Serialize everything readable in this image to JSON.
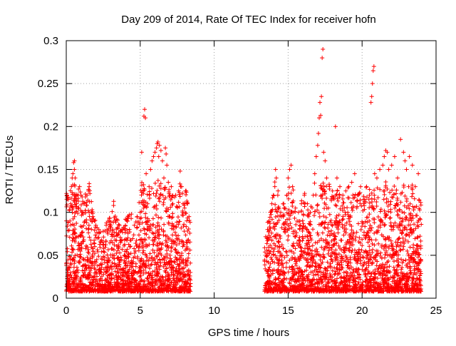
{
  "chart_data": {
    "type": "scatter",
    "title": "Day 209 of 2014, Rate Of TEC Index for receiver hofn",
    "xlabel": "GPS time / hours",
    "ylabel": "ROTI / TECUs",
    "xlim": [
      0,
      25
    ],
    "ylim": [
      0,
      0.3
    ],
    "x_ticks": [
      0,
      5,
      10,
      15,
      20,
      25
    ],
    "x_tick_labels": [
      "0",
      "5",
      "10",
      "15",
      "20",
      "25"
    ],
    "y_ticks": [
      0,
      0.05,
      0.1,
      0.15,
      0.2,
      0.25,
      0.3
    ],
    "y_tick_labels": [
      "0",
      "0.05",
      "0.1",
      "0.15",
      "0.2",
      "0.25",
      "0.3"
    ],
    "grid": true,
    "marker": "+",
    "marker_color": "#ff0000",
    "grid_color": "#a0a0a0",
    "data_gap_hours": [
      8.4,
      13.4
    ],
    "series": [
      {
        "points": [
          [
            0.0,
            0.04
          ],
          [
            0.05,
            0.12
          ],
          [
            0.15,
            0.115
          ],
          [
            0.25,
            0.09
          ],
          [
            0.3,
            0.11
          ],
          [
            0.35,
            0.13
          ],
          [
            0.4,
            0.14
          ],
          [
            0.45,
            0.145
          ],
          [
            0.5,
            0.158
          ],
          [
            0.55,
            0.16
          ],
          [
            0.55,
            0.15
          ],
          [
            0.6,
            0.14
          ],
          [
            0.7,
            0.11
          ],
          [
            0.8,
            0.12
          ],
          [
            0.9,
            0.13
          ],
          [
            1.0,
            0.12
          ],
          [
            1.1,
            0.1
          ],
          [
            1.2,
            0.11
          ],
          [
            1.3,
            0.118
          ],
          [
            1.4,
            0.12
          ],
          [
            1.5,
            0.125
          ],
          [
            1.55,
            0.13
          ],
          [
            1.6,
            0.122
          ],
          [
            1.7,
            0.1
          ],
          [
            1.8,
            0.095
          ],
          [
            1.9,
            0.09
          ],
          [
            2.0,
            0.085
          ],
          [
            2.2,
            0.08
          ],
          [
            2.5,
            0.078
          ],
          [
            2.7,
            0.085
          ],
          [
            2.9,
            0.09
          ],
          [
            3.0,
            0.085
          ],
          [
            3.2,
            0.108
          ],
          [
            3.4,
            0.092
          ],
          [
            3.6,
            0.085
          ],
          [
            3.8,
            0.08
          ],
          [
            4.0,
            0.092
          ],
          [
            4.2,
            0.095
          ],
          [
            4.4,
            0.098
          ],
          [
            4.6,
            0.085
          ],
          [
            4.8,
            0.095
          ],
          [
            5.0,
            0.1
          ],
          [
            5.1,
            0.17
          ],
          [
            5.2,
            0.125
          ],
          [
            5.25,
            0.212
          ],
          [
            5.3,
            0.22
          ],
          [
            5.35,
            0.21
          ],
          [
            5.4,
            0.145
          ],
          [
            5.5,
            0.11
          ],
          [
            5.6,
            0.13
          ],
          [
            5.7,
            0.15
          ],
          [
            5.8,
            0.16
          ],
          [
            5.9,
            0.165
          ],
          [
            6.0,
            0.17
          ],
          [
            6.1,
            0.175
          ],
          [
            6.15,
            0.18
          ],
          [
            6.2,
            0.182
          ],
          [
            6.25,
            0.165
          ],
          [
            6.3,
            0.178
          ],
          [
            6.4,
            0.172
          ],
          [
            6.5,
            0.16
          ],
          [
            6.6,
            0.14
          ],
          [
            6.7,
            0.175
          ],
          [
            6.75,
            0.168
          ],
          [
            6.8,
            0.155
          ],
          [
            6.9,
            0.135
          ],
          [
            7.0,
            0.12
          ],
          [
            7.1,
            0.13
          ],
          [
            7.2,
            0.11
          ],
          [
            7.4,
            0.12
          ],
          [
            7.6,
            0.125
          ],
          [
            7.7,
            0.148
          ],
          [
            7.8,
            0.13
          ],
          [
            7.9,
            0.11
          ],
          [
            8.0,
            0.105
          ],
          [
            8.1,
            0.125
          ],
          [
            8.2,
            0.11
          ],
          [
            8.3,
            0.095
          ],
          [
            13.5,
            0.05
          ],
          [
            13.6,
            0.07
          ],
          [
            13.7,
            0.09
          ],
          [
            13.8,
            0.1
          ],
          [
            13.9,
            0.11
          ],
          [
            14.0,
            0.12
          ],
          [
            14.1,
            0.13
          ],
          [
            14.15,
            0.15
          ],
          [
            14.2,
            0.14
          ],
          [
            14.3,
            0.12
          ],
          [
            14.5,
            0.1
          ],
          [
            14.7,
            0.11
          ],
          [
            14.9,
            0.12
          ],
          [
            15.0,
            0.14
          ],
          [
            15.1,
            0.15
          ],
          [
            15.2,
            0.155
          ],
          [
            15.3,
            0.13
          ],
          [
            15.5,
            0.105
          ],
          [
            15.7,
            0.1
          ],
          [
            15.9,
            0.11
          ],
          [
            16.1,
            0.12
          ],
          [
            16.3,
            0.11
          ],
          [
            16.5,
            0.1
          ],
          [
            16.7,
            0.12
          ],
          [
            16.8,
            0.145
          ],
          [
            16.9,
            0.165
          ],
          [
            17.0,
            0.178
          ],
          [
            17.05,
            0.192
          ],
          [
            17.1,
            0.21
          ],
          [
            17.15,
            0.228
          ],
          [
            17.2,
            0.213
          ],
          [
            17.25,
            0.235
          ],
          [
            17.3,
            0.28
          ],
          [
            17.35,
            0.29
          ],
          [
            17.4,
            0.17
          ],
          [
            17.5,
            0.16
          ],
          [
            17.6,
            0.14
          ],
          [
            17.8,
            0.13
          ],
          [
            18.0,
            0.125
          ],
          [
            18.2,
            0.2
          ],
          [
            18.3,
            0.14
          ],
          [
            18.5,
            0.13
          ],
          [
            18.7,
            0.12
          ],
          [
            18.9,
            0.125
          ],
          [
            19.1,
            0.13
          ],
          [
            19.3,
            0.135
          ],
          [
            19.5,
            0.145
          ],
          [
            19.7,
            0.12
          ],
          [
            19.9,
            0.13
          ],
          [
            20.1,
            0.115
          ],
          [
            20.3,
            0.13
          ],
          [
            20.5,
            0.12
          ],
          [
            20.6,
            0.228
          ],
          [
            20.65,
            0.235
          ],
          [
            20.7,
            0.25
          ],
          [
            20.75,
            0.265
          ],
          [
            20.8,
            0.27
          ],
          [
            20.85,
            0.145
          ],
          [
            21.0,
            0.14
          ],
          [
            21.2,
            0.15
          ],
          [
            21.4,
            0.155
          ],
          [
            21.5,
            0.165
          ],
          [
            21.6,
            0.172
          ],
          [
            21.7,
            0.17
          ],
          [
            21.8,
            0.15
          ],
          [
            22.0,
            0.155
          ],
          [
            22.2,
            0.165
          ],
          [
            22.4,
            0.14
          ],
          [
            22.6,
            0.185
          ],
          [
            22.8,
            0.17
          ],
          [
            22.9,
            0.16
          ],
          [
            23.0,
            0.15
          ],
          [
            23.2,
            0.165
          ],
          [
            23.4,
            0.155
          ],
          [
            23.6,
            0.13
          ],
          [
            23.8,
            0.145
          ]
        ]
      }
    ]
  }
}
